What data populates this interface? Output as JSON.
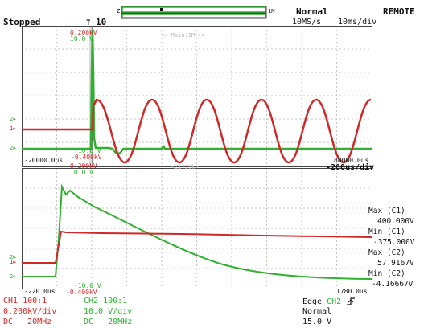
{
  "header": {
    "status": "Stopped",
    "trigger_marker": "T",
    "trigger_position": "10",
    "zoom_left_label": "Z",
    "zoom_right_label": "1M",
    "trigger_mode": "Normal",
    "sample_rate": "10MS/s",
    "time_div": "10ms/div",
    "remote": "REMOTE"
  },
  "main_window": {
    "ch1_top_level": "0.200kV",
    "ch2_top_level": "10.0 V",
    "banner": "<< Main:1M >>",
    "ch1_bottom_level": "-0.400kV",
    "ch2_bottom_level": "-10.0 V",
    "time_left": "-20000.0us",
    "time_right": "80000.0us",
    "ch1_marker": "1",
    "ch2_marker": "2",
    "red_wave_color": "#d02828",
    "green_wave_color": "#30b030"
  },
  "zoom_window": {
    "ch1_top_level": "0.200kV",
    "ch2_top_level": "10.0 V",
    "banner": "<Z1:20k>",
    "time_div": "-200us/div",
    "ch1_bottom_level": "-0.400kV",
    "ch2_bottom_level": "-10.0 V",
    "time_left": "-220.0us",
    "time_right": "1780.0us",
    "ch1_marker": "1",
    "ch2_marker": "2"
  },
  "measurements": [
    {
      "label": "Max (C1)",
      "value": "400.000V"
    },
    {
      "label": "Min (C1)",
      "value": "-375.000V"
    },
    {
      "label": "Max (C2)",
      "value": "57.9167V"
    },
    {
      "label": "Min (C2)",
      "value": "-4.16667V"
    }
  ],
  "footer": {
    "ch1": {
      "name": "CH1",
      "probe": "100:1",
      "scale": "0.200kV/div",
      "coupling": "DC",
      "bandwidth": "20MHz"
    },
    "ch2": {
      "name": "CH2",
      "probe": "100:1",
      "scale": "10.0 V/div",
      "coupling": "DC",
      "bandwidth": "20MHz"
    },
    "trigger": {
      "type": "Edge",
      "source": "CH2",
      "slope_icon": "rising-edge-icon",
      "mode": "Normal",
      "level": "15.0 V"
    }
  }
}
